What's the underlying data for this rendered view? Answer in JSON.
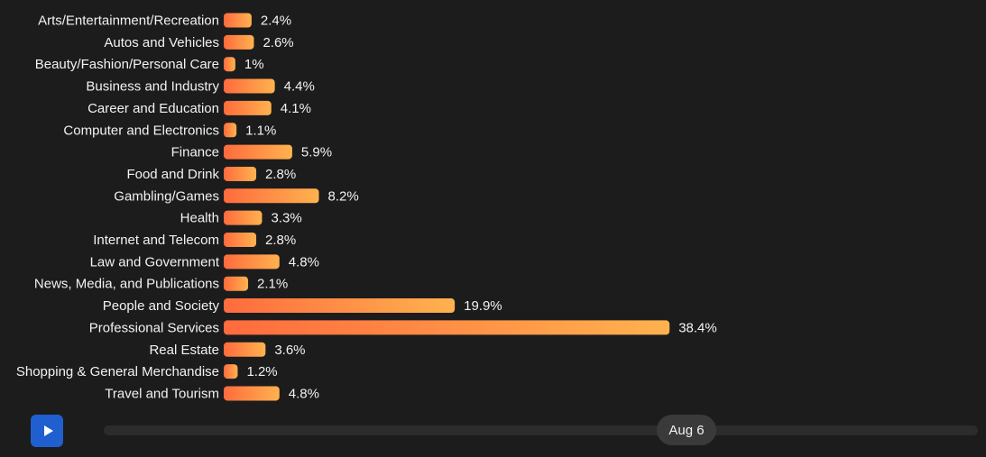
{
  "chart_data": {
    "type": "bar",
    "orientation": "horizontal",
    "categories": [
      "Arts/Entertainment/Recreation",
      "Autos and Vehicles",
      "Beauty/Fashion/Personal Care",
      "Business and Industry",
      "Career and Education",
      "Computer and Electronics",
      "Finance",
      "Food and Drink",
      "Gambling/Games",
      "Health",
      "Internet and Telecom",
      "Law and Government",
      "News, Media, and Publications",
      "People and Society",
      "Professional Services",
      "Real Estate",
      "Shopping & General Merchandise",
      "Travel and Tourism"
    ],
    "values": [
      2.4,
      2.6,
      1,
      4.4,
      4.1,
      1.1,
      5.9,
      2.8,
      8.2,
      3.3,
      2.8,
      4.8,
      2.1,
      19.9,
      38.4,
      3.6,
      1.2,
      4.8
    ],
    "value_labels": [
      "2.4%",
      "2.6%",
      "1%",
      "4.4%",
      "4.1%",
      "1.1%",
      "5.9%",
      "2.8%",
      "8.2%",
      "3.3%",
      "2.8%",
      "4.8%",
      "2.1%",
      "19.9%",
      "38.4%",
      "3.6%",
      "1.2%",
      "4.8%"
    ],
    "unit": "%",
    "bar_gradient": [
      "#ff6b3d",
      "#ffb24f"
    ],
    "grid": false,
    "legend": "none"
  },
  "controls": {
    "play_icon": "play-icon",
    "play_color": "#1f5fcf",
    "timeline_label": "Aug 6",
    "timeline_position": 0.633
  }
}
